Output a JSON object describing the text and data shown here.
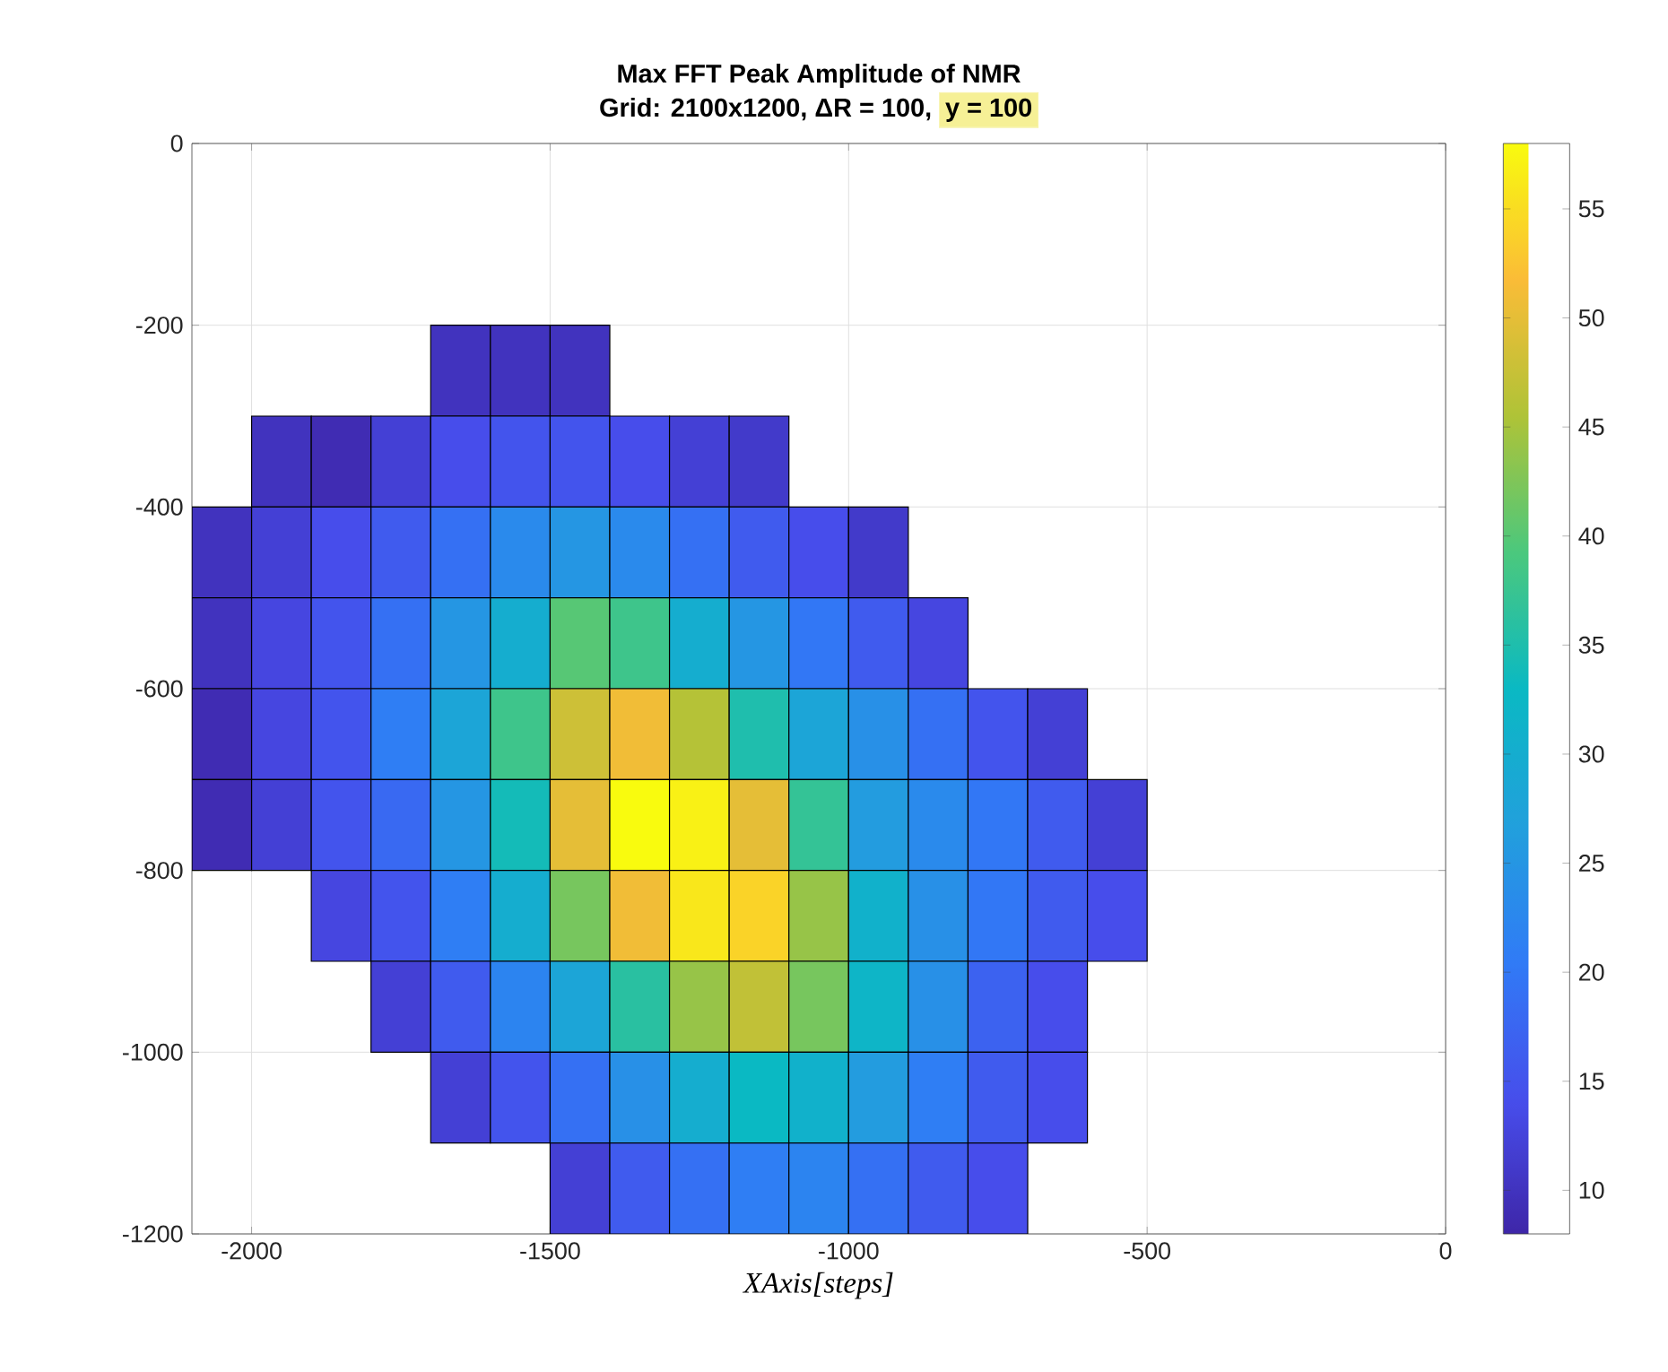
{
  "chart_data": {
    "type": "heatmap",
    "title": "Max FFT Peak Amplitude of NMR",
    "subtitle": "Grid: 2100x1200,  ΔR = 100,",
    "annotations": [
      "y = 100"
    ],
    "xlabel": "XAxis[steps]",
    "x": [
      -2050,
      -1950,
      -1850,
      -1750,
      -1650,
      -1550,
      -1450,
      -1350,
      -1250,
      -1150,
      -1050,
      -950,
      -850,
      -750,
      -650,
      -550,
      -450,
      -350,
      -250,
      -150,
      -50
    ],
    "y": [
      -250,
      -350,
      -450,
      -550,
      -650,
      -750,
      -850,
      -950,
      -1050,
      -1150
    ],
    "cells": [
      [
        null,
        null,
        null,
        null,
        10,
        10,
        10,
        null,
        null,
        null,
        null,
        null,
        null,
        null,
        null,
        null,
        null,
        null,
        null,
        null,
        null
      ],
      [
        null,
        10,
        9,
        12,
        14,
        15,
        15,
        14,
        12,
        11,
        null,
        null,
        null,
        null,
        null,
        null,
        null,
        null,
        null,
        null,
        null
      ],
      [
        10,
        12,
        14,
        16,
        19,
        23,
        25,
        23,
        19,
        16,
        14,
        11,
        null,
        null,
        null,
        null,
        null,
        null,
        null,
        null,
        null
      ],
      [
        10,
        13,
        15,
        19,
        25,
        30,
        40,
        38,
        30,
        25,
        20,
        16,
        13,
        null,
        null,
        null,
        null,
        null,
        null,
        null,
        null
      ],
      [
        9,
        13,
        15,
        21,
        28,
        38,
        48,
        51,
        46,
        35,
        28,
        24,
        19,
        15,
        12,
        null,
        null,
        null,
        null,
        null,
        null
      ],
      [
        9,
        12,
        15,
        18,
        25,
        34,
        50,
        58,
        57,
        50,
        37,
        26,
        23,
        20,
        16,
        12,
        null,
        null,
        null,
        null,
        null
      ],
      [
        null,
        null,
        13,
        15,
        21,
        30,
        42,
        51,
        56,
        54,
        44,
        31,
        24,
        20,
        16,
        14,
        null,
        null,
        null,
        null,
        null
      ],
      [
        null,
        null,
        null,
        12,
        16,
        22,
        28,
        36,
        44,
        47,
        42,
        32,
        24,
        17,
        14,
        null,
        null,
        null,
        null,
        null,
        null
      ],
      [
        null,
        null,
        null,
        null,
        12,
        15,
        19,
        24,
        30,
        33,
        31,
        26,
        21,
        16,
        14,
        null,
        null,
        null,
        null,
        null,
        null
      ],
      [
        null,
        null,
        null,
        null,
        null,
        null,
        12,
        16,
        19,
        21,
        22,
        19,
        16,
        14,
        null,
        null,
        null,
        null,
        null,
        null,
        null
      ]
    ],
    "xlim": [
      -2100,
      0
    ],
    "ylim": [
      -1200,
      0
    ],
    "xticks": [
      -2000,
      -1500,
      -1000,
      -500,
      0
    ],
    "yticks": [
      -1200,
      -1000,
      -800,
      -600,
      -400,
      -200,
      0
    ],
    "clim": [
      8,
      58
    ],
    "cticks": [
      10,
      15,
      20,
      25,
      30,
      35,
      40,
      45,
      50,
      55
    ],
    "grid": true
  }
}
